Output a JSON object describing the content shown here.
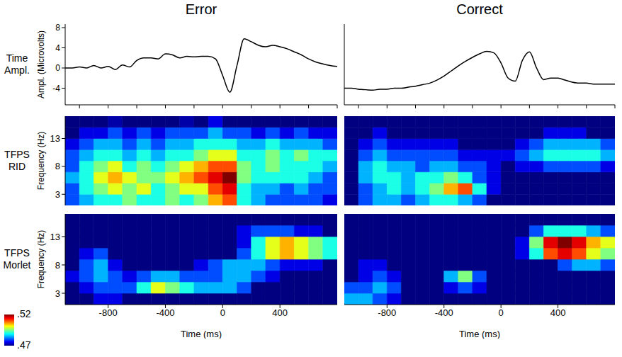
{
  "column_titles": [
    "Error",
    "Correct"
  ],
  "row_labels": [
    "Time Ampl.",
    "TFPS RID",
    "TFPS Morlet"
  ],
  "colorbar": {
    "range": [
      0.47,
      0.52
    ],
    "ticks": [
      {
        "value": 0.52,
        "label": ".52"
      },
      {
        "value": 0.47,
        "label": ".47"
      }
    ]
  },
  "chart_data": [
    {
      "type": "line",
      "color": "#000000",
      "xlim": [
        -1100,
        800
      ],
      "ylim": [
        -7.3,
        8.7
      ],
      "xticks": [
        -1000,
        -800,
        -600,
        -400,
        -200,
        0,
        200,
        400,
        600,
        800
      ],
      "yticks": [
        -4,
        0,
        4,
        8
      ],
      "y_label": "Ampl. (Microvolts)",
      "tick_labels": "y",
      "x": [
        -1100,
        -1050,
        -1000,
        -950,
        -900,
        -850,
        -800,
        -750,
        -700,
        -650,
        -600,
        -550,
        -500,
        -450,
        -400,
        -350,
        -300,
        -250,
        -200,
        -150,
        -100,
        -50,
        0,
        50,
        100,
        150,
        200,
        250,
        300,
        350,
        400,
        450,
        500,
        550,
        600,
        650,
        700,
        750,
        800
      ],
      "values": [
        0,
        0,
        0.2,
        0,
        0.5,
        0,
        0.3,
        -0.3,
        0.6,
        0.2,
        1.5,
        2,
        2,
        1.8,
        2.8,
        2.6,
        2,
        2.3,
        2.2,
        2.3,
        2.3,
        1.8,
        -1.5,
        -4.8,
        0.5,
        5.8,
        5.2,
        4.5,
        4.2,
        4.5,
        4.2,
        3.8,
        3.2,
        2.6,
        1.8,
        1.2,
        0.8,
        0.5,
        0.3
      ]
    },
    {
      "type": "line",
      "color": "#000000",
      "xlim": [
        -1100,
        800
      ],
      "ylim": [
        -7.3,
        8.7
      ],
      "xticks": [
        -1000,
        -800,
        -600,
        -400,
        -200,
        0,
        200,
        400,
        600,
        800
      ],
      "yticks": [],
      "tick_labels": false,
      "x": [
        -1100,
        -1050,
        -1000,
        -950,
        -900,
        -850,
        -800,
        -750,
        -700,
        -650,
        -600,
        -550,
        -500,
        -450,
        -400,
        -350,
        -300,
        -250,
        -200,
        -150,
        -100,
        -50,
        0,
        50,
        100,
        150,
        200,
        250,
        300,
        350,
        400,
        450,
        500,
        550,
        600,
        650,
        700,
        750,
        800
      ],
      "values": [
        -4,
        -4,
        -4.2,
        -4.3,
        -4.4,
        -4.2,
        -4.2,
        -4,
        -4,
        -3.8,
        -3.6,
        -3.3,
        -3,
        -2.4,
        -1.6,
        -0.6,
        0.4,
        1.3,
        2.1,
        2.8,
        3.3,
        3,
        1,
        -2,
        -2.6,
        1.5,
        3.2,
        0,
        -2.3,
        -2,
        -2,
        -2.4,
        -2.8,
        -3,
        -3,
        -3.2,
        -3.2,
        -3.2,
        -3.2
      ]
    },
    {
      "type": "heatmap",
      "xlim": [
        -1100,
        800
      ],
      "ylim": [
        1,
        17
      ],
      "xticks": [],
      "yticks": [
        3,
        8,
        13
      ],
      "y_label": "Frequency (Hz)",
      "tick_labels": "y",
      "x_bins": [
        -1100,
        -1000,
        -900,
        -800,
        -700,
        -600,
        -500,
        -400,
        -300,
        -200,
        -100,
        0,
        100,
        200,
        300,
        400,
        500,
        600,
        700,
        800
      ],
      "y_bins": [
        1,
        3,
        5,
        7,
        9,
        11,
        13,
        15,
        17
      ],
      "cells": [
        [
          0.48,
          0.485,
          0.49,
          0.49,
          0.495,
          0.49,
          0.49,
          0.495,
          0.49,
          0.495,
          0.505,
          0.51,
          0.49,
          0.485,
          0.48,
          0.48,
          0.48,
          0.48,
          0.475
        ],
        [
          0.48,
          0.49,
          0.495,
          0.5,
          0.495,
          0.5,
          0.49,
          0.495,
          0.5,
          0.5,
          0.51,
          0.515,
          0.49,
          0.485,
          0.485,
          0.48,
          0.485,
          0.48,
          0.48
        ],
        [
          0.485,
          0.49,
          0.5,
          0.505,
          0.5,
          0.495,
          0.495,
          0.5,
          0.505,
          0.51,
          0.515,
          0.52,
          0.495,
          0.49,
          0.49,
          0.49,
          0.49,
          0.485,
          0.48
        ],
        [
          0.48,
          0.49,
          0.495,
          0.5,
          0.49,
          0.495,
          0.49,
          0.495,
          0.5,
          0.505,
          0.51,
          0.51,
          0.495,
          0.49,
          0.495,
          0.49,
          0.49,
          0.49,
          0.485
        ],
        [
          0.48,
          0.485,
          0.49,
          0.49,
          0.485,
          0.49,
          0.485,
          0.49,
          0.49,
          0.495,
          0.5,
          0.5,
          0.49,
          0.49,
          0.495,
          0.49,
          0.495,
          0.49,
          0.49
        ],
        [
          0.475,
          0.48,
          0.485,
          0.485,
          0.48,
          0.485,
          0.48,
          0.485,
          0.485,
          0.49,
          0.49,
          0.49,
          0.485,
          0.485,
          0.49,
          0.485,
          0.485,
          0.485,
          0.48
        ],
        [
          0.47,
          0.475,
          0.475,
          0.48,
          0.475,
          0.48,
          0.475,
          0.48,
          0.48,
          0.48,
          0.485,
          0.48,
          0.48,
          0.475,
          0.48,
          0.475,
          0.48,
          0.475,
          0.475
        ],
        [
          0.47,
          0.47,
          0.47,
          0.472,
          0.47,
          0.47,
          0.47,
          0.47,
          0.472,
          0.47,
          0.475,
          0.47,
          0.47,
          0.47,
          0.47,
          0.47,
          0.47,
          0.47,
          0.47
        ]
      ]
    },
    {
      "type": "heatmap",
      "xlim": [
        -1100,
        800
      ],
      "ylim": [
        1,
        17
      ],
      "xticks": [],
      "yticks": [],
      "tick_labels": false,
      "x_bins": [
        -1100,
        -1000,
        -900,
        -800,
        -700,
        -600,
        -500,
        -400,
        -300,
        -200,
        -100,
        0,
        100,
        200,
        300,
        400,
        500,
        600,
        700,
        800
      ],
      "y_bins": [
        1,
        3,
        5,
        7,
        9,
        11,
        13,
        15,
        17
      ],
      "cells": [
        [
          0.47,
          0.48,
          0.485,
          0.485,
          0.48,
          0.485,
          0.49,
          0.49,
          0.485,
          0.48,
          0.47,
          0.47,
          0.47,
          0.47,
          0.47,
          0.47,
          0.47,
          0.47,
          0.47
        ],
        [
          0.47,
          0.48,
          0.485,
          0.49,
          0.485,
          0.49,
          0.495,
          0.505,
          0.51,
          0.49,
          0.475,
          0.47,
          0.47,
          0.47,
          0.47,
          0.47,
          0.47,
          0.47,
          0.47
        ],
        [
          0.47,
          0.485,
          0.49,
          0.49,
          0.485,
          0.49,
          0.49,
          0.495,
          0.49,
          0.48,
          0.475,
          0.47,
          0.47,
          0.47,
          0.47,
          0.47,
          0.47,
          0.47,
          0.47
        ],
        [
          0.47,
          0.485,
          0.49,
          0.485,
          0.485,
          0.48,
          0.485,
          0.485,
          0.48,
          0.48,
          0.475,
          0.47,
          0.475,
          0.475,
          0.48,
          0.48,
          0.48,
          0.48,
          0.475
        ],
        [
          0.47,
          0.48,
          0.485,
          0.48,
          0.48,
          0.48,
          0.48,
          0.48,
          0.475,
          0.475,
          0.475,
          0.475,
          0.48,
          0.485,
          0.49,
          0.49,
          0.49,
          0.49,
          0.485
        ],
        [
          0.47,
          0.475,
          0.48,
          0.475,
          0.475,
          0.475,
          0.475,
          0.475,
          0.47,
          0.47,
          0.47,
          0.47,
          0.475,
          0.48,
          0.485,
          0.485,
          0.485,
          0.485,
          0.48
        ],
        [
          0.47,
          0.47,
          0.475,
          0.47,
          0.47,
          0.47,
          0.47,
          0.47,
          0.47,
          0.47,
          0.47,
          0.47,
          0.47,
          0.47,
          0.475,
          0.475,
          0.475,
          0.47,
          0.47
        ],
        [
          0.47,
          0.47,
          0.47,
          0.47,
          0.47,
          0.47,
          0.47,
          0.47,
          0.47,
          0.47,
          0.47,
          0.47,
          0.47,
          0.47,
          0.47,
          0.47,
          0.47,
          0.47,
          0.47
        ]
      ]
    },
    {
      "type": "heatmap",
      "xlim": [
        -1100,
        800
      ],
      "ylim": [
        1,
        17
      ],
      "xticks": [
        -800,
        -400,
        0,
        400
      ],
      "yticks": [
        3,
        8,
        13
      ],
      "x_label": "Time (ms)",
      "y_label": "Frequency (Hz)",
      "tick_labels": true,
      "x_bins": [
        -1100,
        -1000,
        -900,
        -800,
        -700,
        -600,
        -500,
        -400,
        -300,
        -200,
        -100,
        0,
        100,
        200,
        300,
        400,
        500,
        600,
        700,
        800
      ],
      "y_bins": [
        1,
        3,
        5,
        7,
        9,
        11,
        13,
        15,
        17
      ],
      "cells": [
        [
          0.47,
          0.47,
          0.475,
          0.475,
          0.47,
          0.47,
          0.47,
          0.47,
          0.47,
          0.47,
          0.47,
          0.47,
          0.47,
          0.47,
          0.47,
          0.47,
          0.47,
          0.47,
          0.47
        ],
        [
          0.47,
          0.475,
          0.48,
          0.48,
          0.48,
          0.49,
          0.5,
          0.495,
          0.49,
          0.485,
          0.485,
          0.485,
          0.48,
          0.47,
          0.47,
          0.47,
          0.47,
          0.47,
          0.47
        ],
        [
          0.475,
          0.48,
          0.485,
          0.48,
          0.475,
          0.48,
          0.485,
          0.485,
          0.48,
          0.48,
          0.48,
          0.485,
          0.485,
          0.48,
          0.475,
          0.47,
          0.47,
          0.47,
          0.47
        ],
        [
          0.47,
          0.48,
          0.485,
          0.475,
          0.47,
          0.47,
          0.47,
          0.47,
          0.47,
          0.475,
          0.48,
          0.485,
          0.485,
          0.485,
          0.48,
          0.475,
          0.475,
          0.475,
          0.47
        ],
        [
          0.47,
          0.475,
          0.48,
          0.47,
          0.47,
          0.47,
          0.47,
          0.47,
          0.47,
          0.47,
          0.47,
          0.47,
          0.48,
          0.49,
          0.5,
          0.505,
          0.5,
          0.495,
          0.49
        ],
        [
          0.47,
          0.47,
          0.47,
          0.47,
          0.47,
          0.47,
          0.47,
          0.47,
          0.47,
          0.47,
          0.47,
          0.47,
          0.475,
          0.49,
          0.5,
          0.505,
          0.5,
          0.495,
          0.49
        ],
        [
          0.47,
          0.47,
          0.47,
          0.47,
          0.47,
          0.47,
          0.47,
          0.47,
          0.47,
          0.47,
          0.47,
          0.47,
          0.475,
          0.48,
          0.48,
          0.48,
          0.475,
          0.475,
          0.47
        ],
        [
          0.47,
          0.47,
          0.47,
          0.47,
          0.47,
          0.47,
          0.47,
          0.47,
          0.47,
          0.47,
          0.47,
          0.47,
          0.47,
          0.47,
          0.47,
          0.47,
          0.47,
          0.47,
          0.47
        ]
      ]
    },
    {
      "type": "heatmap",
      "xlim": [
        -1100,
        800
      ],
      "ylim": [
        1,
        17
      ],
      "xticks": [
        -800,
        -400,
        0,
        400
      ],
      "yticks": [],
      "x_label": "Time (ms)",
      "tick_labels": "x",
      "x_bins": [
        -1100,
        -1000,
        -900,
        -800,
        -700,
        -600,
        -500,
        -400,
        -300,
        -200,
        -100,
        0,
        100,
        200,
        300,
        400,
        500,
        600,
        700,
        800
      ],
      "y_bins": [
        1,
        3,
        5,
        7,
        9,
        11,
        13,
        15,
        17
      ],
      "cells": [
        [
          0.485,
          0.485,
          0.48,
          0.475,
          0.47,
          0.47,
          0.47,
          0.47,
          0.47,
          0.47,
          0.47,
          0.47,
          0.47,
          0.47,
          0.47,
          0.47,
          0.47,
          0.47,
          0.47
        ],
        [
          0.48,
          0.48,
          0.485,
          0.48,
          0.47,
          0.47,
          0.47,
          0.475,
          0.48,
          0.475,
          0.47,
          0.47,
          0.47,
          0.47,
          0.47,
          0.47,
          0.47,
          0.47,
          0.47
        ],
        [
          0.47,
          0.475,
          0.48,
          0.475,
          0.47,
          0.47,
          0.47,
          0.485,
          0.495,
          0.48,
          0.47,
          0.47,
          0.47,
          0.47,
          0.47,
          0.47,
          0.47,
          0.47,
          0.47
        ],
        [
          0.47,
          0.475,
          0.475,
          0.47,
          0.47,
          0.47,
          0.47,
          0.47,
          0.47,
          0.47,
          0.47,
          0.47,
          0.47,
          0.47,
          0.47,
          0.48,
          0.485,
          0.485,
          0.48
        ],
        [
          0.47,
          0.47,
          0.47,
          0.47,
          0.47,
          0.47,
          0.47,
          0.47,
          0.47,
          0.47,
          0.47,
          0.47,
          0.475,
          0.49,
          0.51,
          0.515,
          0.51,
          0.5,
          0.495
        ],
        [
          0.47,
          0.47,
          0.47,
          0.47,
          0.47,
          0.47,
          0.47,
          0.47,
          0.47,
          0.47,
          0.47,
          0.47,
          0.475,
          0.495,
          0.515,
          0.52,
          0.515,
          0.505,
          0.5
        ],
        [
          0.47,
          0.47,
          0.47,
          0.47,
          0.47,
          0.47,
          0.47,
          0.47,
          0.47,
          0.47,
          0.47,
          0.47,
          0.47,
          0.48,
          0.49,
          0.49,
          0.49,
          0.485,
          0.48
        ],
        [
          0.47,
          0.47,
          0.47,
          0.47,
          0.47,
          0.47,
          0.47,
          0.47,
          0.47,
          0.47,
          0.47,
          0.47,
          0.47,
          0.47,
          0.47,
          0.47,
          0.47,
          0.47,
          0.47
        ]
      ]
    }
  ]
}
